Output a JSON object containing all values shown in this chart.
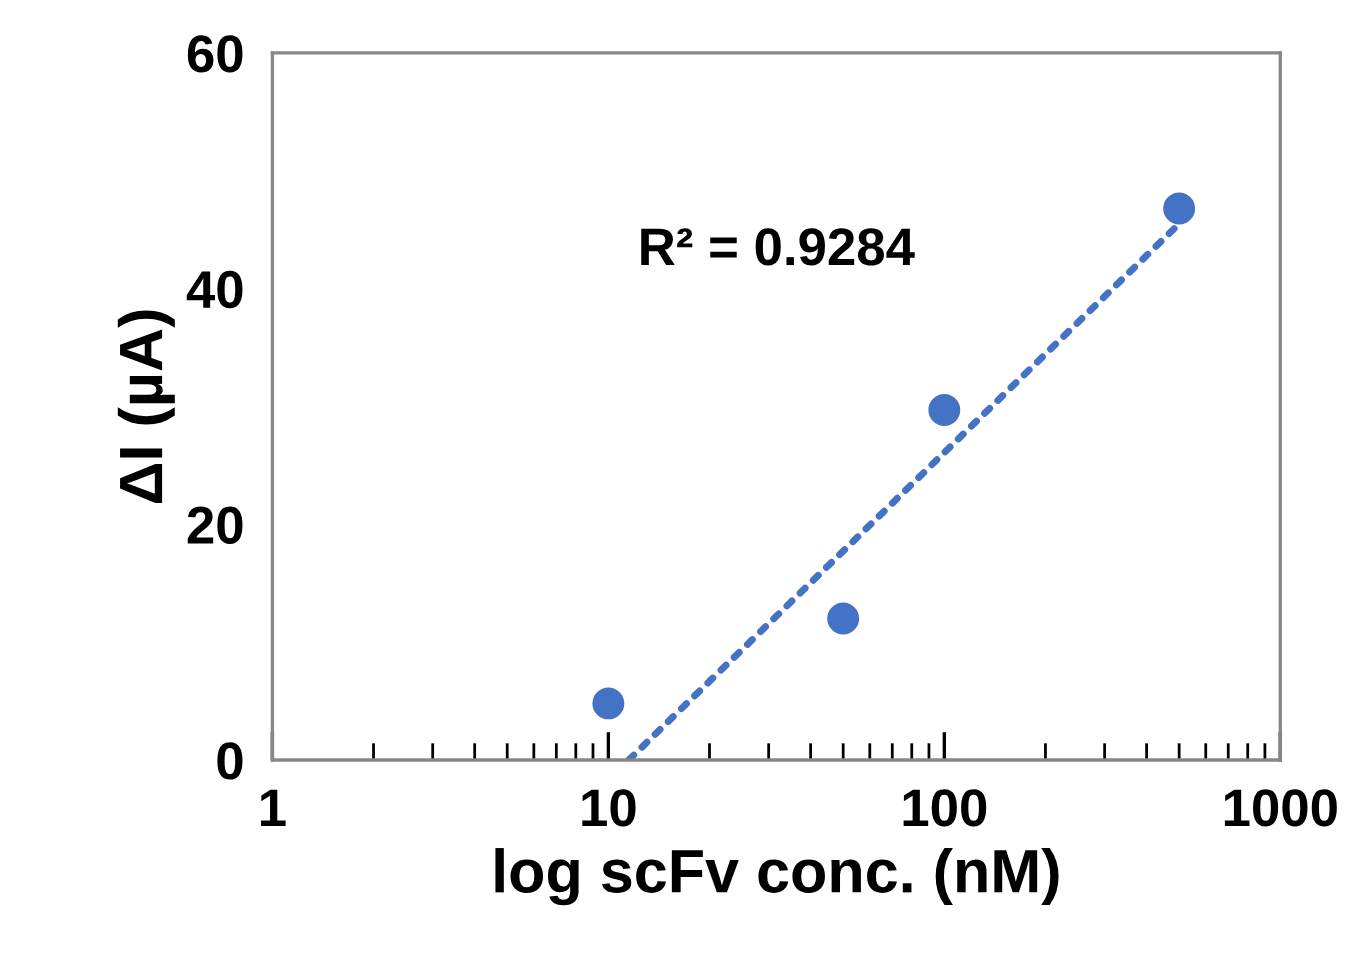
{
  "chart_data": {
    "type": "scatter",
    "xlabel": "log scFv conc. (nM)",
    "ylabel": "ΔI (µA)",
    "log": "x",
    "xlim": [
      1,
      1000
    ],
    "xticks": [
      1,
      10,
      100,
      1000
    ],
    "ylim": [
      0,
      60
    ],
    "yticks": [
      0,
      20,
      40,
      60
    ],
    "grid": false,
    "legend": false,
    "marker": "circle",
    "annotations": [
      "R² = 0.9284"
    ],
    "series": [
      {
        "color": "#4472c4",
        "x": [
          10,
          50,
          100,
          500
        ],
        "values": [
          4.8,
          12,
          29.7,
          46.8
        ]
      },
      {
        "type": "line",
        "color": "#4472c4",
        "line_style": "dotted",
        "marker": "none",
        "x": [
          11.5,
          500
        ],
        "values": [
          0,
          45.5
        ]
      }
    ]
  }
}
